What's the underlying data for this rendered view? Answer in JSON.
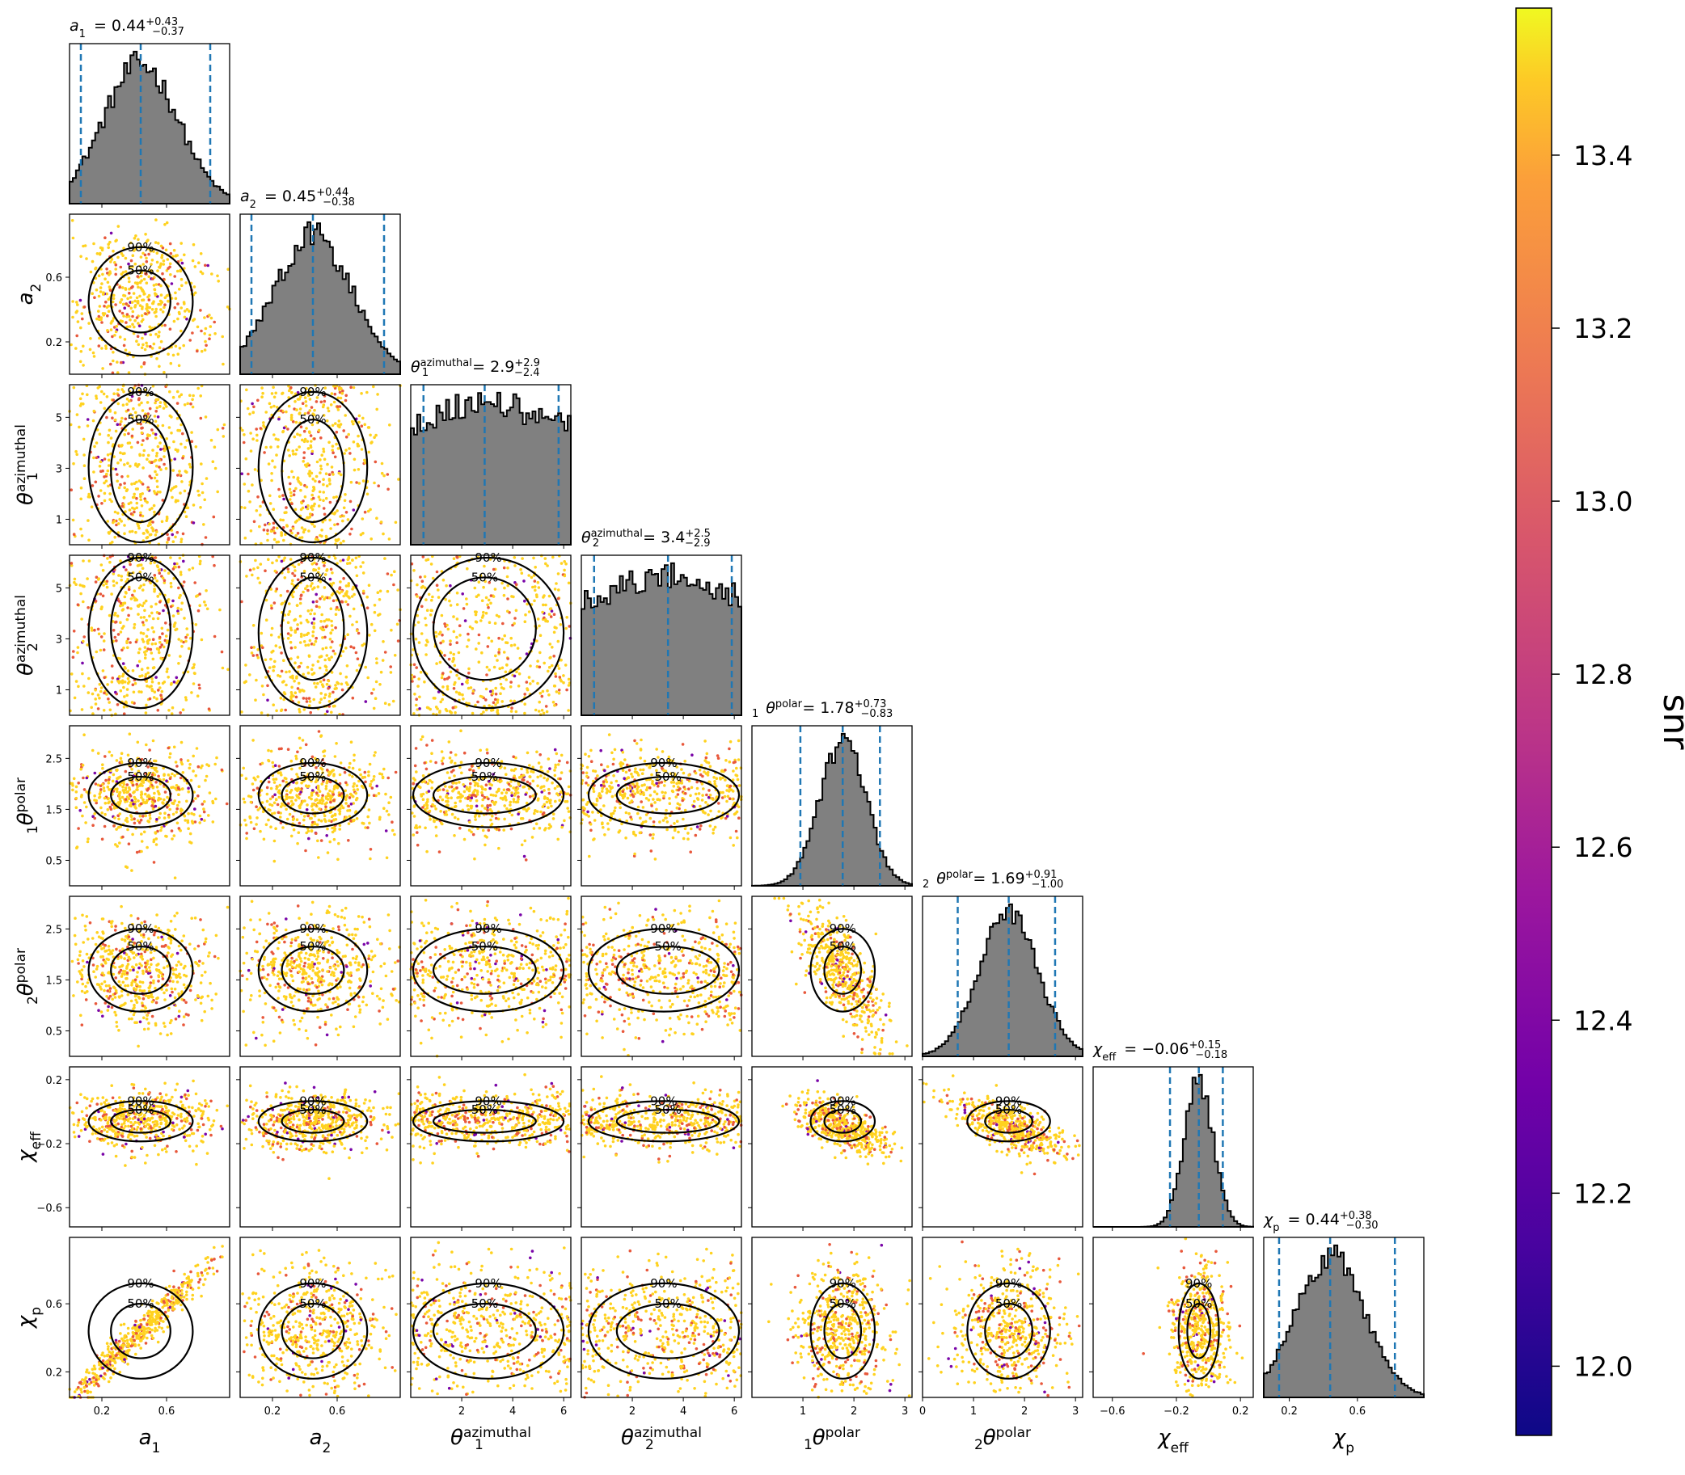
{
  "chart_data": {
    "type": "scatter",
    "variant": "corner-plot",
    "colormap": "plasma",
    "scatter_color_range": [
      "#ffd21f",
      "#e8583c",
      "#7a06a8"
    ],
    "contour_levels": [
      "50%",
      "90%"
    ],
    "colorbar": {
      "label": "snr",
      "range": [
        11.92,
        13.57
      ],
      "ticks": [
        "12.0",
        "12.2",
        "12.4",
        "12.6",
        "12.8",
        "13.0",
        "13.2",
        "13.4"
      ],
      "tick_values": [
        12.0,
        12.2,
        12.4,
        12.6,
        12.8,
        13.0,
        13.2,
        13.4
      ]
    },
    "hist_fill": "#808080",
    "quantile_line_color": "#1f77b4",
    "parameters": [
      {
        "key": "a1",
        "base": "a",
        "sub": "1",
        "sup": "",
        "median": "0.44",
        "plus": "+0.43",
        "minus": "−0.37",
        "range": [
          0.0,
          0.99
        ],
        "xticks": [
          "0.2",
          "0.6"
        ],
        "xtick_values": [
          0.2,
          0.6
        ],
        "yticks": [],
        "ytick_values": [],
        "center": 0.44,
        "spread": 0.23,
        "shape": "broad",
        "quantiles": [
          0.07,
          0.44,
          0.87
        ]
      },
      {
        "key": "a2",
        "base": "a",
        "sub": "2",
        "sup": "",
        "median": "0.45",
        "plus": "+0.44",
        "minus": "−0.38",
        "range": [
          0.0,
          0.99
        ],
        "xticks": [
          "0.2",
          "0.6"
        ],
        "xtick_values": [
          0.2,
          0.6
        ],
        "yticks": [
          "0.2",
          "0.6"
        ],
        "ytick_values": [
          0.2,
          0.6
        ],
        "center": 0.45,
        "spread": 0.24,
        "shape": "broad",
        "quantiles": [
          0.07,
          0.45,
          0.89
        ]
      },
      {
        "key": "theta1_azimuthal",
        "base": "θ",
        "sub": "1",
        "sup": "azimuthal",
        "median": "2.9",
        "plus": "+2.9",
        "minus": "−2.4",
        "range": [
          0.0,
          6.28
        ],
        "xticks": [
          "2",
          "4",
          "6"
        ],
        "xtick_values": [
          2,
          4,
          6
        ],
        "yticks": [
          "1",
          "3",
          "5"
        ],
        "ytick_values": [
          1,
          3,
          5
        ],
        "center": 2.9,
        "spread": 1.6,
        "shape": "flat",
        "quantiles": [
          0.5,
          2.9,
          5.8
        ]
      },
      {
        "key": "theta2_azimuthal",
        "base": "θ",
        "sub": "2",
        "sup": "azimuthal",
        "median": "3.4",
        "plus": "+2.5",
        "minus": "−2.9",
        "range": [
          0.0,
          6.28
        ],
        "xticks": [
          "2",
          "4",
          "6"
        ],
        "xtick_values": [
          2,
          4,
          6
        ],
        "yticks": [
          "1",
          "3",
          "5"
        ],
        "ytick_values": [
          1,
          3,
          5
        ],
        "center": 3.4,
        "spread": 1.7,
        "shape": "flat",
        "quantiles": [
          0.5,
          3.4,
          5.9
        ]
      },
      {
        "key": "theta1_polar",
        "base": "θ",
        "sub": "1",
        "sup": "polar",
        "median": "1.78",
        "plus": "+0.73",
        "minus": "−0.83",
        "range": [
          0.0,
          3.14
        ],
        "xticks": [
          "1",
          "2",
          "3"
        ],
        "xtick_values": [
          1,
          2,
          3
        ],
        "yticks": [
          "0.5",
          "1.5",
          "2.5"
        ],
        "ytick_values": [
          0.5,
          1.5,
          2.5
        ],
        "center": 1.78,
        "spread": 0.45,
        "shape": "peaked",
        "quantiles": [
          0.95,
          1.78,
          2.51
        ]
      },
      {
        "key": "theta2_polar",
        "base": "θ",
        "sub": "2",
        "sup": "polar",
        "median": "1.69",
        "plus": "+0.91",
        "minus": "−1.00",
        "range": [
          0.0,
          3.14
        ],
        "xticks": [
          "0",
          "1",
          "2",
          "3"
        ],
        "xtick_values": [
          0,
          1,
          2,
          3
        ],
        "yticks": [
          "0.5",
          "1.5",
          "2.5"
        ],
        "ytick_values": [
          0.5,
          1.5,
          2.5
        ],
        "center": 1.69,
        "spread": 0.58,
        "shape": "peaked",
        "quantiles": [
          0.69,
          1.69,
          2.6
        ]
      },
      {
        "key": "chi_eff",
        "base": "χ",
        "sub": "eff",
        "sup": "",
        "median": "−0.06",
        "plus": "+0.15",
        "minus": "−0.18",
        "range": [
          -0.72,
          0.28
        ],
        "xticks": [
          "−0.6",
          "−0.2",
          "0.2"
        ],
        "xtick_values": [
          -0.6,
          -0.2,
          0.2
        ],
        "yticks": [
          "0.2",
          "−0.2",
          "−0.6"
        ],
        "ytick_values": [
          0.2,
          -0.2,
          -0.6
        ],
        "center": -0.06,
        "spread": 0.09,
        "shape": "peaked",
        "quantiles": [
          -0.24,
          -0.06,
          0.09
        ]
      },
      {
        "key": "chi_p",
        "base": "χ",
        "sub": "p",
        "sup": "",
        "median": "0.44",
        "plus": "+0.38",
        "minus": "−0.30",
        "range": [
          0.05,
          0.99
        ],
        "xticks": [
          "0.2",
          "0.6"
        ],
        "xtick_values": [
          0.2,
          0.6
        ],
        "yticks": [
          "0.2",
          "0.6"
        ],
        "ytick_values": [
          0.2,
          0.6
        ],
        "center": 0.44,
        "spread": 0.2,
        "shape": "broad",
        "quantiles": [
          0.14,
          0.44,
          0.82
        ]
      }
    ]
  }
}
